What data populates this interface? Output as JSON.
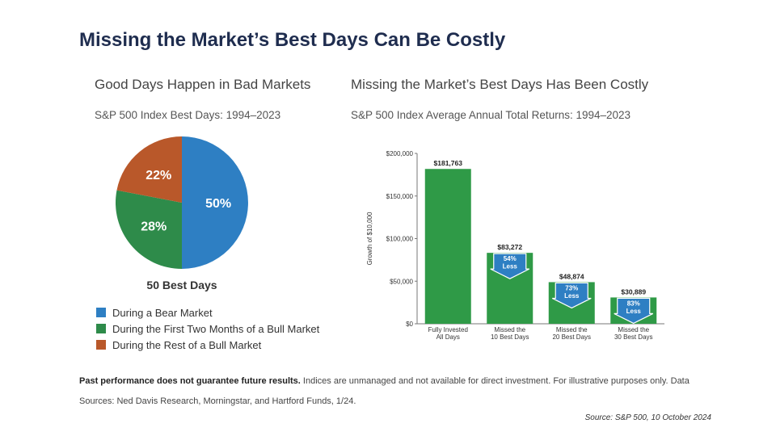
{
  "header": {
    "title": "Missing the Market’s Best Days Can Be Costly"
  },
  "colors": {
    "bear": "#2e7fc3",
    "first_two_months": "#2e8b4a",
    "rest_bull": "#b9582a",
    "bar": "#2f9a47",
    "arrow": "#2e7fc3",
    "title": "#1f2d4f"
  },
  "chart_data": [
    {
      "type": "pie",
      "title": "Good Days Happen in Bad Markets",
      "subtitle": "S&P 500 Index Best Days: 1994–2023",
      "caption": "50 Best Days",
      "slices": [
        {
          "label": "During a Bear Market",
          "value": 50,
          "display": "50%",
          "color": "#2e7fc3"
        },
        {
          "label": "During the First Two Months of a Bull Market",
          "value": 28,
          "display": "28%",
          "color": "#2e8b4a"
        },
        {
          "label": "During the Rest of a Bull Market",
          "value": 22,
          "display": "22%",
          "color": "#b9582a"
        }
      ],
      "legend_position": "bottom-left"
    },
    {
      "type": "bar",
      "title": "Missing the Market’s Best Days Has Been Costly",
      "subtitle": "S&P 500 Index Average Annual Total Returns: 1994–2023",
      "ylabel": "Growth of $10,000",
      "ylim": [
        0,
        200000
      ],
      "yticks": [
        0,
        50000,
        100000,
        150000,
        200000
      ],
      "ytick_labels": [
        "$0",
        "$50,000",
        "$100,000",
        "$150,000",
        "$200,000"
      ],
      "categories": [
        [
          "Fully Invested",
          "All Days"
        ],
        [
          "Missed the",
          "10 Best Days"
        ],
        [
          "Missed the",
          "20 Best Days"
        ],
        [
          "Missed the",
          "30 Best Days"
        ]
      ],
      "values": [
        181763,
        83272,
        48874,
        30889
      ],
      "value_labels": [
        "$181,763",
        "$83,272",
        "$48,874",
        "$30,889"
      ],
      "annotations": [
        null,
        [
          "54%",
          "Less"
        ],
        [
          "73%",
          "Less"
        ],
        [
          "83%",
          "Less"
        ]
      ],
      "grid": false
    }
  ],
  "footnote": {
    "bold": "Past performance does not guarantee future results.",
    "text": " Indices are unmanaged and not available for direct investment. For illustrative purposes only. Data Sources: Ned Davis Research, Morningstar, and Hartford Funds, 1/24."
  },
  "source": "Source: S&P 500, 10 October 2024"
}
